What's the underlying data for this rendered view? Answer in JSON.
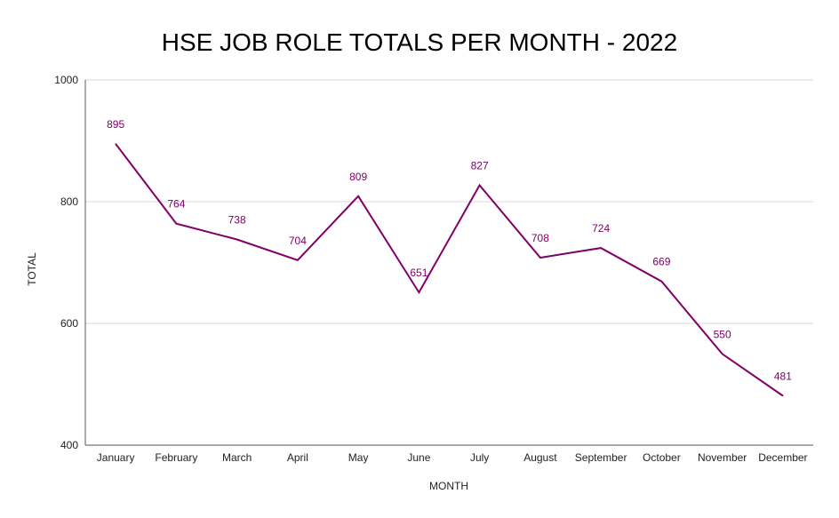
{
  "chart_data": {
    "type": "line",
    "title": "HSE JOB ROLE TOTALS PER MONTH - 2022",
    "xlabel": "MONTH",
    "ylabel": "TOTAL",
    "categories": [
      "January",
      "February",
      "March",
      "April",
      "May",
      "June",
      "July",
      "August",
      "September",
      "October",
      "November",
      "December"
    ],
    "series": [
      {
        "values": [
          895,
          764,
          738,
          704,
          809,
          651,
          827,
          708,
          724,
          669,
          550,
          481
        ]
      }
    ],
    "ylim": [
      400,
      1000
    ],
    "yticks": [
      "400",
      "600",
      "800",
      "1000"
    ],
    "grid": true,
    "data_labels": true,
    "line_color": "#800066"
  }
}
